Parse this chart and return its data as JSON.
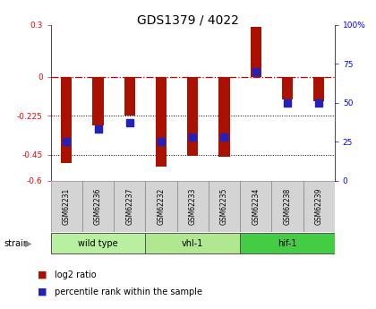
{
  "title": "GDS1379 / 4022",
  "samples": [
    "GSM62231",
    "GSM62236",
    "GSM62237",
    "GSM62232",
    "GSM62233",
    "GSM62235",
    "GSM62234",
    "GSM62238",
    "GSM62239"
  ],
  "log2_ratios": [
    -0.5,
    -0.28,
    -0.225,
    -0.52,
    -0.455,
    -0.46,
    0.29,
    -0.13,
    -0.14
  ],
  "percentile_ranks": [
    25,
    33,
    37,
    25,
    28,
    28,
    70,
    50,
    50
  ],
  "groups": [
    {
      "label": "wild type",
      "indices": [
        0,
        1,
        2
      ],
      "color": "#b8f0a0"
    },
    {
      "label": "vhl-1",
      "indices": [
        3,
        4,
        5
      ],
      "color": "#b0e890"
    },
    {
      "label": "hif-1",
      "indices": [
        6,
        7,
        8
      ],
      "color": "#44cc44"
    }
  ],
  "ylim_left": [
    -0.6,
    0.3
  ],
  "ylim_right": [
    0,
    100
  ],
  "yticks_left": [
    -0.6,
    -0.45,
    -0.225,
    0.0,
    0.3
  ],
  "ytick_labels_left": [
    "-0.6",
    "-0.45",
    "-0.225",
    "0",
    "0.3"
  ],
  "yticks_right": [
    0,
    25,
    50,
    75,
    100
  ],
  "ytick_labels_right": [
    "0",
    "25",
    "50",
    "75",
    "100%"
  ],
  "hline_y": 0.0,
  "dotted_lines": [
    -0.225,
    -0.45
  ],
  "bar_color": "#aa1100",
  "dot_color": "#2222bb",
  "bar_width": 0.35,
  "dot_size": 28,
  "bg_color": "#ffffff",
  "label_box_color": "#d4d4d4",
  "legend_items": [
    {
      "label": "log2 ratio",
      "color": "#aa1100"
    },
    {
      "label": "percentile rank within the sample",
      "color": "#2222bb"
    }
  ]
}
